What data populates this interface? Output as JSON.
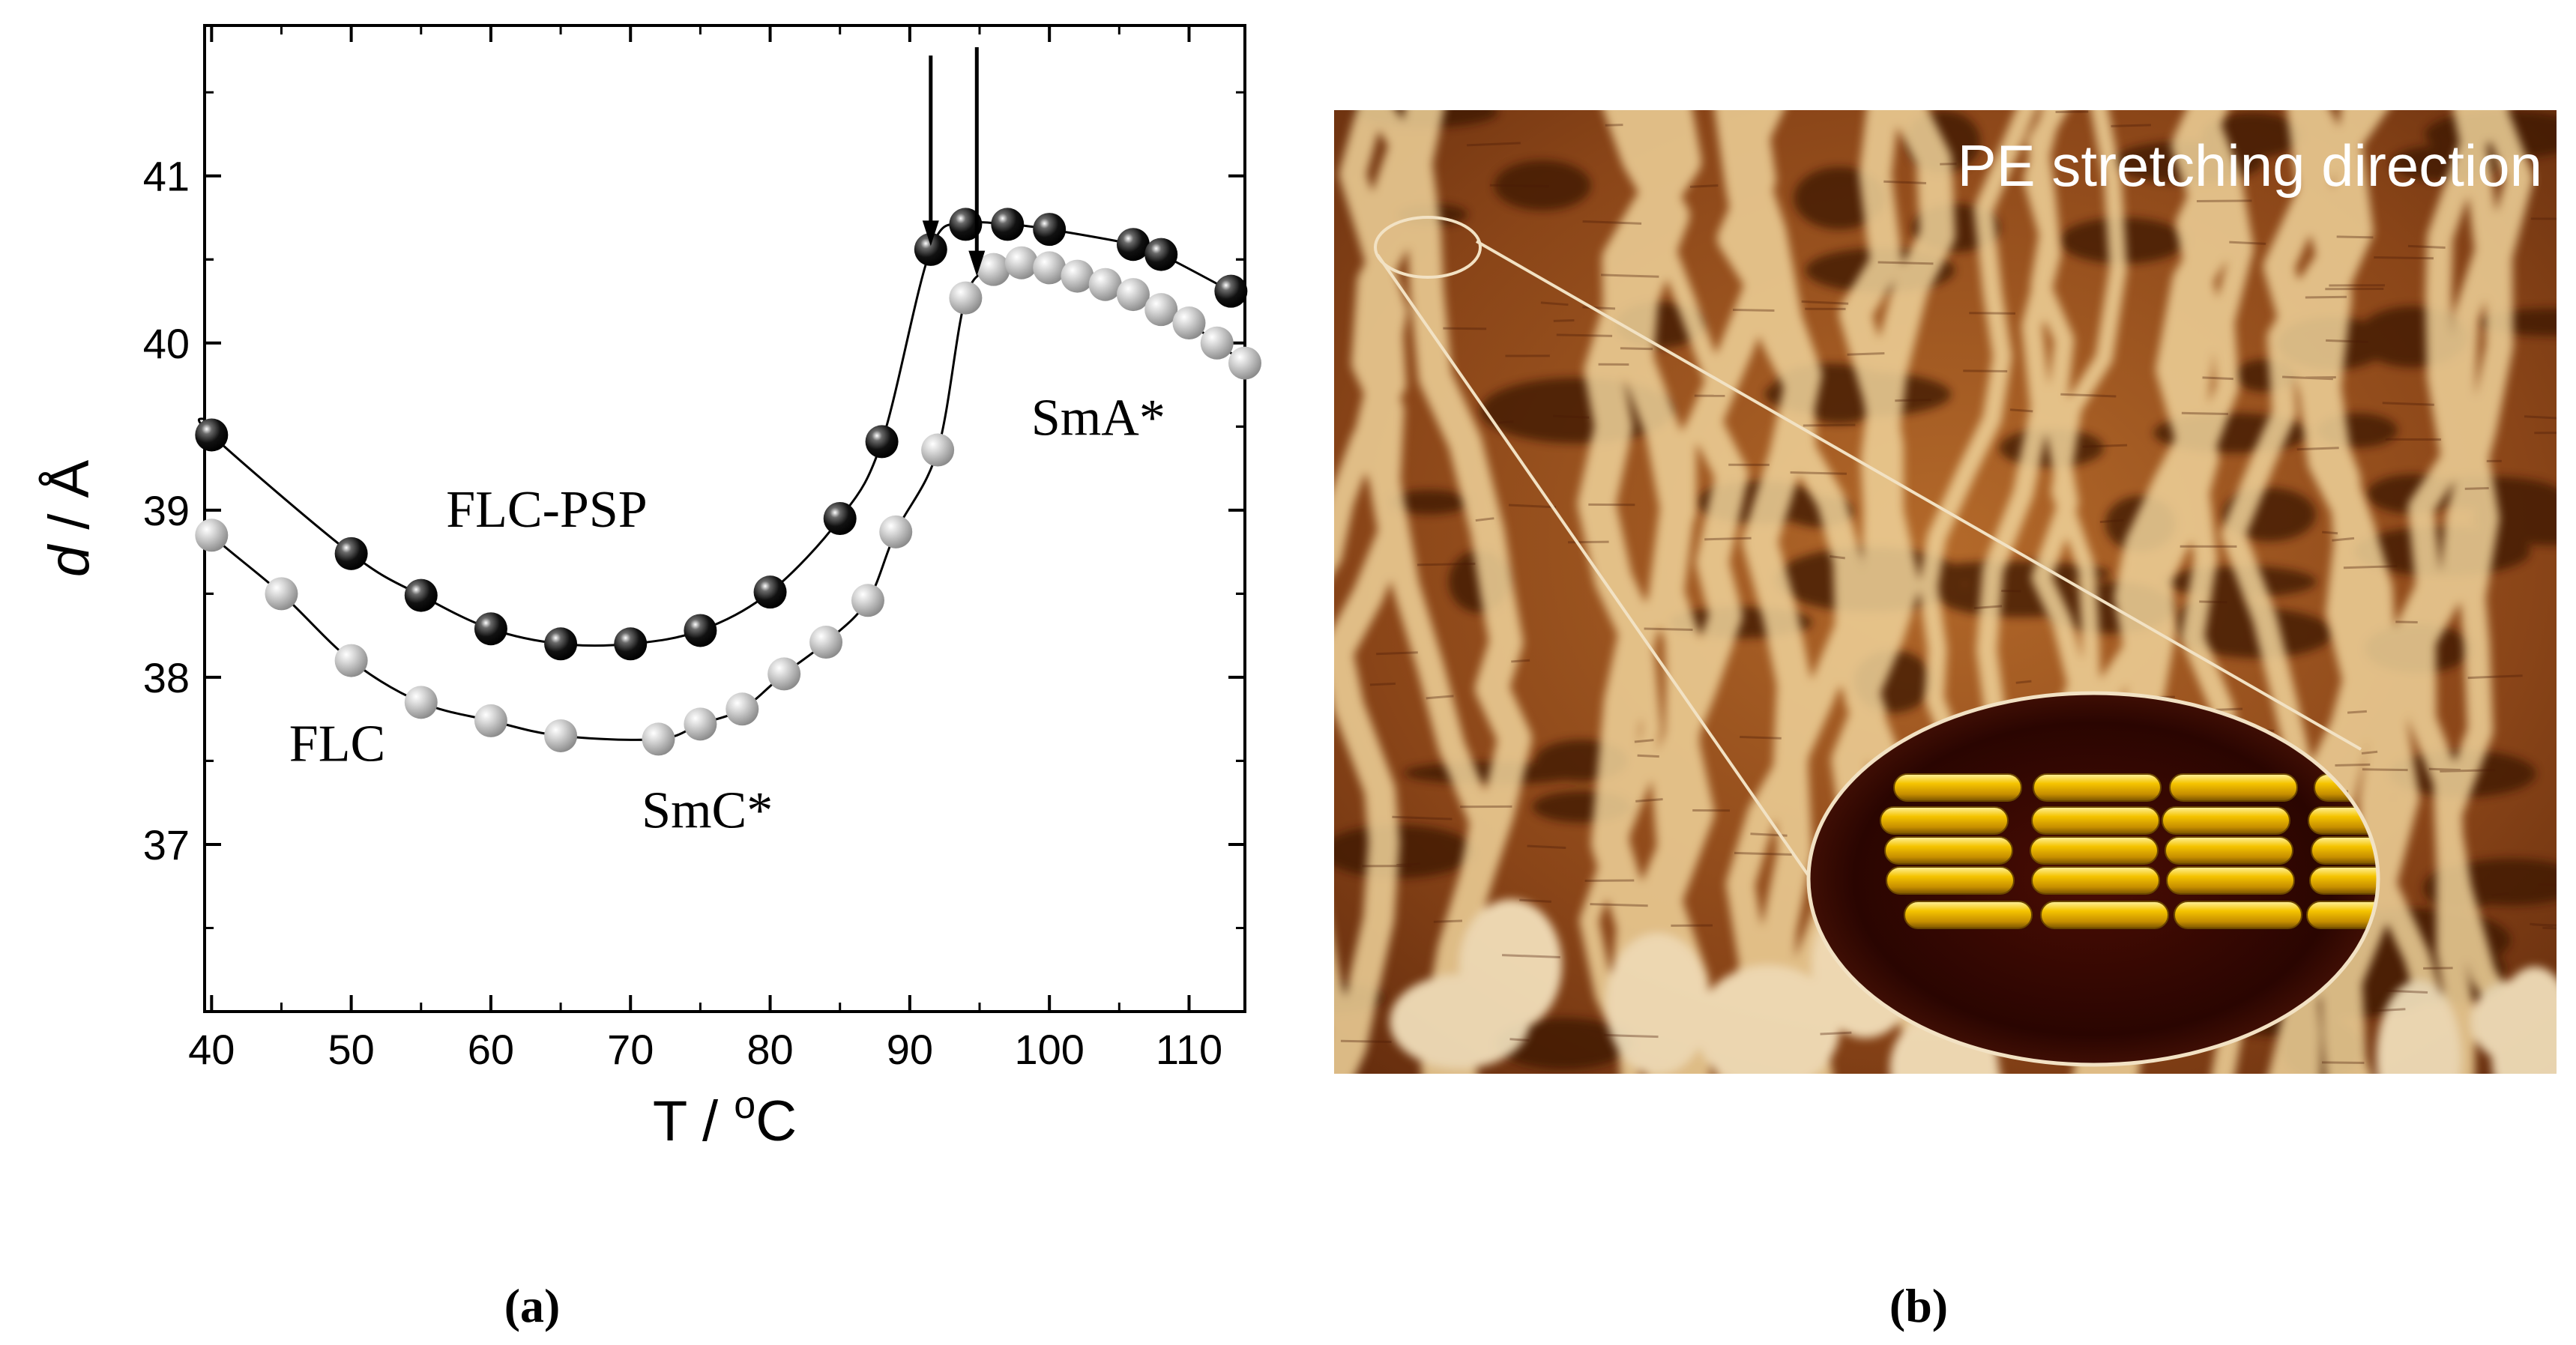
{
  "panel_a": {
    "label": "(a)",
    "chart_data": {
      "type": "scatter",
      "title": "",
      "xlabel_main": "T / ",
      "xlabel_sup": "o",
      "xlabel_unit": "C",
      "ylabel_italic": "d",
      "ylabel_rest": " / Å",
      "xlim": [
        39.5,
        114
      ],
      "ylim": [
        36,
        41.9
      ],
      "xticks": [
        40,
        50,
        60,
        70,
        80,
        90,
        100,
        110
      ],
      "yticks": [
        37,
        38,
        39,
        40,
        41
      ],
      "series": [
        {
          "name": "FLC-PSP",
          "color": "#000000",
          "x": [
            40,
            50,
            55,
            60,
            65,
            70,
            75,
            80,
            85,
            88,
            91.5,
            94,
            97,
            100,
            106,
            108,
            113
          ],
          "y": [
            39.45,
            38.74,
            38.49,
            38.29,
            38.2,
            38.2,
            38.28,
            38.51,
            38.95,
            39.41,
            40.56,
            40.71,
            40.71,
            40.68,
            40.59,
            40.53,
            40.31
          ]
        },
        {
          "name": "FLC",
          "color": "#a8a8a8",
          "x": [
            40,
            45,
            50,
            55,
            60,
            65,
            72,
            75,
            78,
            81,
            84,
            87,
            89,
            92,
            94,
            96,
            98,
            100,
            102,
            104,
            106,
            108,
            110,
            112,
            114
          ],
          "y": [
            38.85,
            38.5,
            38.1,
            37.85,
            37.74,
            37.65,
            37.63,
            37.72,
            37.81,
            38.02,
            38.21,
            38.46,
            38.87,
            39.36,
            40.27,
            40.44,
            40.48,
            40.45,
            40.4,
            40.35,
            40.29,
            40.2,
            40.12,
            40.0,
            39.88
          ]
        }
      ],
      "annotations": [
        {
          "text": "FLC-PSP",
          "x": 64,
          "y": 38.9
        },
        {
          "text": "FLC",
          "x": 49,
          "y": 37.5
        },
        {
          "text": "SmC*",
          "x": 75.5,
          "y": 37.1
        },
        {
          "text": "SmA*",
          "x": 103.5,
          "y": 39.45
        }
      ],
      "arrows": [
        {
          "x": 91.5,
          "y_from": 41.72,
          "y_to": 40.58
        },
        {
          "x": 94.8,
          "y_from": 41.77,
          "y_to": 40.4
        }
      ]
    }
  },
  "panel_b": {
    "label": "(b)",
    "caption": "PE stretching direction",
    "image_name": "afm-micrograph-with-smectic-layer-inset",
    "inset_rows": [
      4,
      4,
      4,
      4,
      4
    ]
  }
}
